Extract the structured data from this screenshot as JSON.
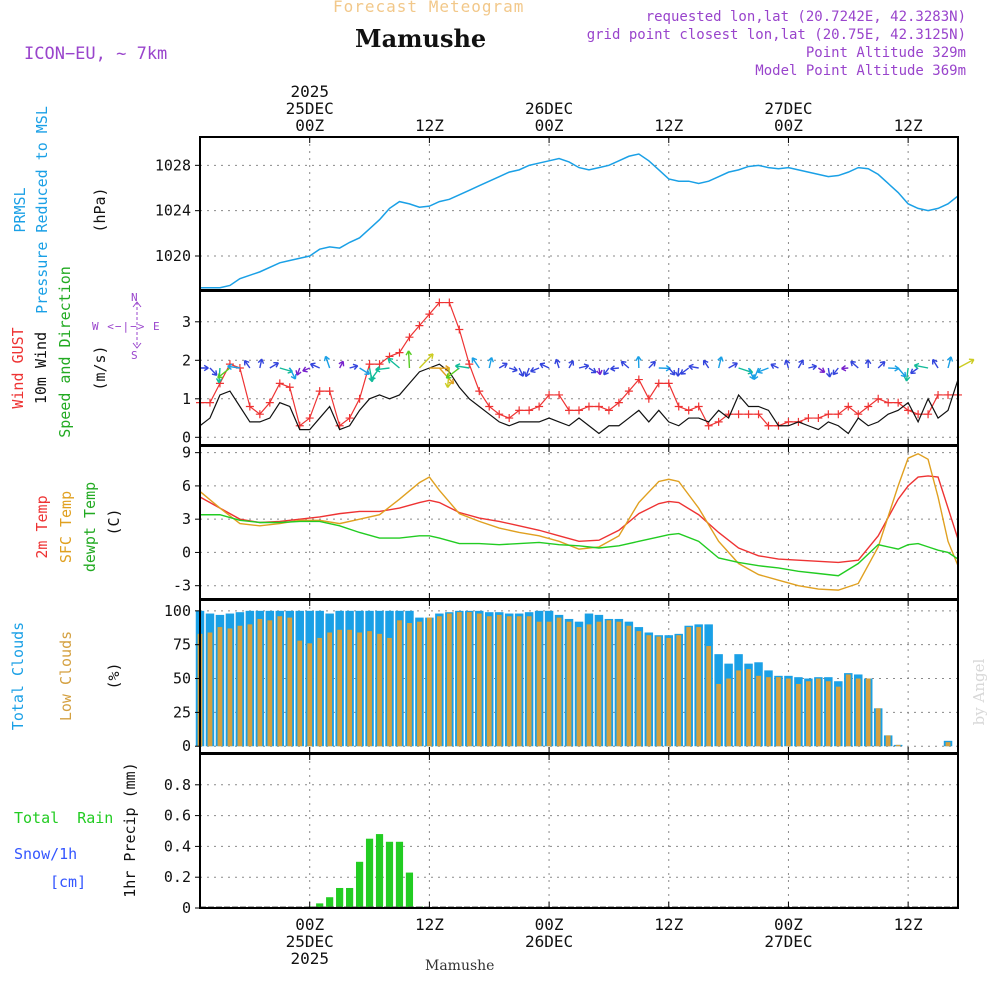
{
  "header": {
    "product": "Forecast Meteogram",
    "location": "Mamushe",
    "model": "ICON−EU, ~ 7km",
    "requested": "requested lon,lat (20.7242E, 42.3283N)",
    "grid": "grid point closest lon,lat (20.75E, 42.3125N)",
    "point_alt": "Point Altitude 329m",
    "model_alt": "Model Point Altitude 369m",
    "footer": "Mamushe",
    "credit": "by Angel"
  },
  "colors": {
    "pressure": "#1aa0e6",
    "gust": "#ee3333",
    "wind": "#111111",
    "wind_label": "#22aa22",
    "temp2m": "#ee3333",
    "sfc": "#e0a020",
    "dewpt": "#22cc22",
    "total_cloud": "#1aa0e6",
    "low_cloud": "#d4a040",
    "rain": "#22cc22",
    "snow": "#3355ff",
    "purple": "#9944cc"
  },
  "time_axis": {
    "top_labels": [
      {
        "x": 11,
        "lines": [
          "2025",
          "25DEC",
          "00Z"
        ]
      },
      {
        "x": 23,
        "lines": [
          "12Z"
        ]
      },
      {
        "x": 35,
        "lines": [
          "26DEC",
          "00Z"
        ]
      },
      {
        "x": 47,
        "lines": [
          "12Z"
        ]
      },
      {
        "x": 59,
        "lines": [
          "27DEC",
          "00Z"
        ]
      },
      {
        "x": 71,
        "lines": [
          "12Z"
        ]
      }
    ],
    "bottom_labels": [
      {
        "x": 11,
        "lines": [
          "00Z",
          "25DEC",
          "2025"
        ]
      },
      {
        "x": 23,
        "lines": [
          "12Z"
        ]
      },
      {
        "x": 35,
        "lines": [
          "00Z",
          "26DEC"
        ]
      },
      {
        "x": 47,
        "lines": [
          "12Z"
        ]
      },
      {
        "x": 59,
        "lines": [
          "00Z",
          "27DEC"
        ]
      },
      {
        "x": 71,
        "lines": [
          "12Z"
        ]
      }
    ],
    "x_range": [
      0,
      76
    ],
    "unit": "hours from 24DEC 13Z"
  },
  "panel_labels": {
    "pressure": [
      "PRMSL",
      "Pressure Reduced to MSL",
      "(hPa)"
    ],
    "wind": [
      "Wind GUST",
      "10m Wind",
      "Speed and Direction",
      "(m/s)"
    ],
    "compass": [
      "N",
      "W <−|−> E",
      "S"
    ],
    "temp": [
      "2m Temp",
      "SFC Temp",
      "dewpt Temp",
      "(C)"
    ],
    "clouds": [
      "Total Clouds",
      "Low Clouds",
      "(%)"
    ],
    "precip": [
      "Total  Rain",
      "Snow/1h",
      "[cm]",
      "1hr Precip (mm)"
    ]
  },
  "chart_data": [
    {
      "type": "line",
      "name": "pressure",
      "ylabel": "(hPa)",
      "ylim": [
        1017,
        1030.5
      ],
      "yticks": [
        1020,
        1024,
        1028
      ],
      "x": [
        0,
        2,
        3,
        4,
        6,
        8,
        9,
        10,
        11,
        12,
        13,
        14,
        15,
        16,
        17,
        18,
        19,
        20,
        21,
        22,
        23,
        24,
        25,
        26,
        27,
        28,
        29,
        30,
        31,
        32,
        33,
        34,
        35,
        36,
        37,
        38,
        39,
        40,
        41,
        42,
        43,
        44,
        45,
        46,
        47,
        48,
        49,
        50,
        51,
        52,
        53,
        54,
        55,
        56,
        57,
        58,
        59,
        60,
        61,
        62,
        63,
        64,
        65,
        66,
        67,
        68,
        69,
        70,
        71,
        72,
        73,
        74,
        75,
        76
      ],
      "series": [
        {
          "name": "PRMSL",
          "values": [
            1017.2,
            1017.2,
            1017.4,
            1018.0,
            1018.6,
            1019.4,
            1019.6,
            1019.8,
            1020.0,
            1020.6,
            1020.8,
            1020.7,
            1021.2,
            1021.6,
            1022.4,
            1023.2,
            1024.2,
            1024.8,
            1024.6,
            1024.3,
            1024.4,
            1024.8,
            1025.0,
            1025.4,
            1025.8,
            1026.2,
            1026.6,
            1027.0,
            1027.4,
            1027.6,
            1028.0,
            1028.2,
            1028.4,
            1028.6,
            1028.3,
            1027.8,
            1027.6,
            1027.8,
            1028.0,
            1028.4,
            1028.8,
            1029.0,
            1028.4,
            1027.6,
            1026.8,
            1026.6,
            1026.6,
            1026.4,
            1026.6,
            1027.0,
            1027.4,
            1027.6,
            1027.9,
            1028.0,
            1027.8,
            1027.7,
            1027.8,
            1027.6,
            1027.4,
            1027.2,
            1027.0,
            1027.1,
            1027.4,
            1027.8,
            1027.7,
            1027.2,
            1026.4,
            1025.6,
            1024.6,
            1024.2,
            1024.0,
            1024.2,
            1024.6,
            1025.3
          ]
        }
      ]
    },
    {
      "type": "line",
      "name": "wind",
      "ylabel": "(m/s)",
      "ylim": [
        -0.2,
        3.8
      ],
      "yticks": [
        0,
        1,
        2,
        3
      ],
      "x": [
        0,
        1,
        2,
        3,
        4,
        5,
        6,
        7,
        8,
        9,
        10,
        11,
        12,
        13,
        14,
        15,
        16,
        17,
        18,
        19,
        20,
        21,
        22,
        23,
        24,
        25,
        26,
        27,
        28,
        29,
        30,
        31,
        32,
        33,
        34,
        35,
        36,
        37,
        38,
        39,
        40,
        41,
        42,
        43,
        44,
        45,
        46,
        47,
        48,
        49,
        50,
        51,
        52,
        53,
        54,
        55,
        56,
        57,
        58,
        59,
        60,
        61,
        62,
        63,
        64,
        65,
        66,
        67,
        68,
        69,
        70,
        71,
        72,
        73,
        74,
        75,
        76
      ],
      "series": [
        {
          "name": "Wind GUST",
          "values": [
            0.9,
            0.9,
            1.4,
            1.9,
            1.8,
            0.8,
            0.6,
            0.9,
            1.4,
            1.3,
            0.3,
            0.5,
            1.2,
            1.2,
            0.3,
            0.5,
            1.0,
            1.9,
            1.9,
            2.1,
            2.2,
            2.6,
            2.9,
            3.2,
            3.5,
            3.5,
            2.8,
            1.9,
            1.2,
            0.8,
            0.6,
            0.5,
            0.7,
            0.7,
            0.8,
            1.1,
            1.1,
            0.7,
            0.7,
            0.8,
            0.8,
            0.7,
            0.9,
            1.2,
            1.5,
            1.0,
            1.4,
            1.4,
            0.8,
            0.7,
            0.8,
            0.3,
            0.4,
            0.6,
            0.6,
            0.6,
            0.6,
            0.3,
            0.3,
            0.4,
            0.4,
            0.5,
            0.5,
            0.6,
            0.6,
            0.8,
            0.6,
            0.8,
            1.0,
            0.9,
            0.9,
            0.7,
            0.6,
            0.6,
            1.1,
            1.1,
            1.1
          ]
        },
        {
          "name": "10m Wind",
          "values": [
            0.3,
            0.5,
            1.1,
            1.2,
            0.8,
            0.4,
            0.4,
            0.5,
            0.9,
            0.8,
            0.2,
            0.2,
            0.5,
            0.8,
            0.2,
            0.3,
            0.7,
            1.0,
            1.1,
            1.0,
            1.1,
            1.4,
            1.7,
            1.8,
            1.9,
            1.7,
            1.3,
            1.0,
            0.8,
            0.6,
            0.4,
            0.3,
            0.4,
            0.4,
            0.4,
            0.5,
            0.4,
            0.3,
            0.5,
            0.3,
            0.1,
            0.3,
            0.3,
            0.5,
            0.7,
            0.4,
            0.7,
            0.4,
            0.3,
            0.5,
            0.5,
            0.4,
            0.7,
            0.5,
            1.1,
            0.8,
            0.8,
            0.7,
            0.3,
            0.3,
            0.4,
            0.3,
            0.2,
            0.4,
            0.3,
            0.1,
            0.5,
            0.3,
            0.4,
            0.6,
            0.7,
            0.9,
            0.4,
            1.0,
            0.5,
            0.7,
            1.5
          ]
        }
      ],
      "arrow_level": 1.8
    },
    {
      "type": "line",
      "name": "temperature",
      "ylabel": "(C)",
      "ylim": [
        -4.2,
        9.6
      ],
      "yticks": [
        -3,
        0,
        3,
        6,
        9
      ],
      "x": [
        0,
        2,
        4,
        6,
        8,
        10,
        12,
        14,
        16,
        18,
        20,
        22,
        23,
        24,
        26,
        28,
        30,
        32,
        34,
        36,
        38,
        40,
        42,
        44,
        46,
        47,
        48,
        50,
        52,
        54,
        56,
        58,
        60,
        62,
        64,
        66,
        68,
        70,
        71,
        72,
        73,
        74,
        75,
        76
      ],
      "series": [
        {
          "name": "2m Temp",
          "values": [
            5.0,
            4.0,
            3.0,
            2.7,
            2.8,
            3.0,
            3.2,
            3.5,
            3.7,
            3.7,
            4.0,
            4.5,
            4.7,
            4.5,
            3.6,
            3.1,
            2.8,
            2.4,
            2.0,
            1.5,
            1.0,
            1.1,
            2.0,
            3.5,
            4.4,
            4.6,
            4.5,
            3.4,
            1.8,
            0.4,
            -0.3,
            -0.6,
            -0.7,
            -0.8,
            -0.9,
            -0.7,
            1.5,
            4.8,
            6.0,
            6.8,
            6.9,
            6.8,
            4.0,
            1.2
          ]
        },
        {
          "name": "SFC Temp",
          "values": [
            5.5,
            4.0,
            2.6,
            2.4,
            2.6,
            2.9,
            2.9,
            2.6,
            3.0,
            3.4,
            4.8,
            6.3,
            6.8,
            5.6,
            3.5,
            2.8,
            2.2,
            1.8,
            1.5,
            1.0,
            0.3,
            0.5,
            1.5,
            4.5,
            6.4,
            6.6,
            6.4,
            4.0,
            1.0,
            -1.0,
            -2.0,
            -2.5,
            -3.0,
            -3.3,
            -3.4,
            -2.8,
            0.5,
            6.0,
            8.5,
            8.9,
            8.4,
            5.0,
            1.0,
            -1.2
          ]
        },
        {
          "name": "dewpt Temp",
          "values": [
            3.4,
            3.4,
            2.9,
            2.7,
            2.7,
            2.8,
            2.8,
            2.4,
            1.8,
            1.3,
            1.3,
            1.5,
            1.5,
            1.3,
            0.8,
            0.8,
            0.7,
            0.8,
            0.9,
            0.7,
            0.6,
            0.4,
            0.6,
            1.0,
            1.4,
            1.6,
            1.7,
            1.0,
            -0.5,
            -0.9,
            -1.2,
            -1.4,
            -1.7,
            -1.9,
            -2.1,
            -1.0,
            0.7,
            0.3,
            0.7,
            0.8,
            0.5,
            0.2,
            0.0,
            -0.6
          ]
        }
      ]
    },
    {
      "type": "bar",
      "name": "clouds",
      "ylabel": "(%)",
      "ylim": [
        -5,
        108
      ],
      "yticks": [
        0,
        25,
        50,
        75,
        100
      ],
      "x_start": 0,
      "x_step": 1,
      "series": [
        {
          "name": "Total Clouds",
          "values": [
            100,
            98,
            97,
            98,
            99,
            100,
            100,
            100,
            100,
            100,
            100,
            100,
            100,
            98,
            100,
            100,
            100,
            100,
            100,
            100,
            100,
            100,
            95,
            95,
            98,
            99,
            100,
            100,
            100,
            99,
            99,
            98,
            98,
            99,
            100,
            100,
            97,
            94,
            92,
            98,
            97,
            94,
            94,
            92,
            88,
            84,
            82,
            82,
            83,
            89,
            90,
            90,
            68,
            61,
            68,
            61,
            62,
            56,
            52,
            52,
            51,
            50,
            51,
            51,
            48,
            54,
            53,
            50,
            28,
            8,
            1,
            0,
            0,
            0,
            0,
            4
          ]
        },
        {
          "name": "Low Clouds",
          "values": [
            83,
            84,
            88,
            87,
            89,
            90,
            94,
            93,
            96,
            95,
            78,
            76,
            80,
            84,
            86,
            86,
            84,
            85,
            83,
            80,
            93,
            91,
            92,
            95,
            96,
            98,
            99,
            99,
            98,
            96,
            97,
            96,
            96,
            96,
            92,
            92,
            95,
            92,
            88,
            90,
            92,
            93,
            92,
            89,
            85,
            82,
            81,
            80,
            82,
            88,
            88,
            74,
            46,
            50,
            56,
            57,
            52,
            51,
            51,
            50,
            46,
            48,
            50,
            48,
            44,
            53,
            50,
            50,
            28,
            8,
            1,
            0,
            0,
            0,
            0,
            3
          ]
        }
      ]
    },
    {
      "type": "bar",
      "name": "precip",
      "ylabel": "1hr Precip (mm)",
      "ylim": [
        0,
        1.0
      ],
      "yticks": [
        0,
        0.2,
        0.4,
        0.6,
        0.8
      ],
      "x_start": 0,
      "x_step": 1,
      "series": [
        {
          "name": "Total Rain",
          "values": [
            0,
            0,
            0,
            0,
            0,
            0,
            0,
            0,
            0,
            0,
            0,
            0.01,
            0.03,
            0.07,
            0.13,
            0.13,
            0.3,
            0.45,
            0.48,
            0.43,
            0.43,
            0.23,
            0.01,
            0,
            0,
            0,
            0,
            0,
            0,
            0,
            0,
            0,
            0,
            0,
            0,
            0,
            0,
            0,
            0,
            0,
            0,
            0,
            0,
            0,
            0,
            0,
            0,
            0,
            0,
            0,
            0,
            0,
            0,
            0,
            0,
            0,
            0,
            0,
            0,
            0,
            0,
            0,
            0,
            0,
            0,
            0,
            0,
            0,
            0,
            0,
            0,
            0,
            0,
            0,
            0,
            0
          ]
        },
        {
          "name": "Snow/1h",
          "values": []
        }
      ]
    }
  ]
}
